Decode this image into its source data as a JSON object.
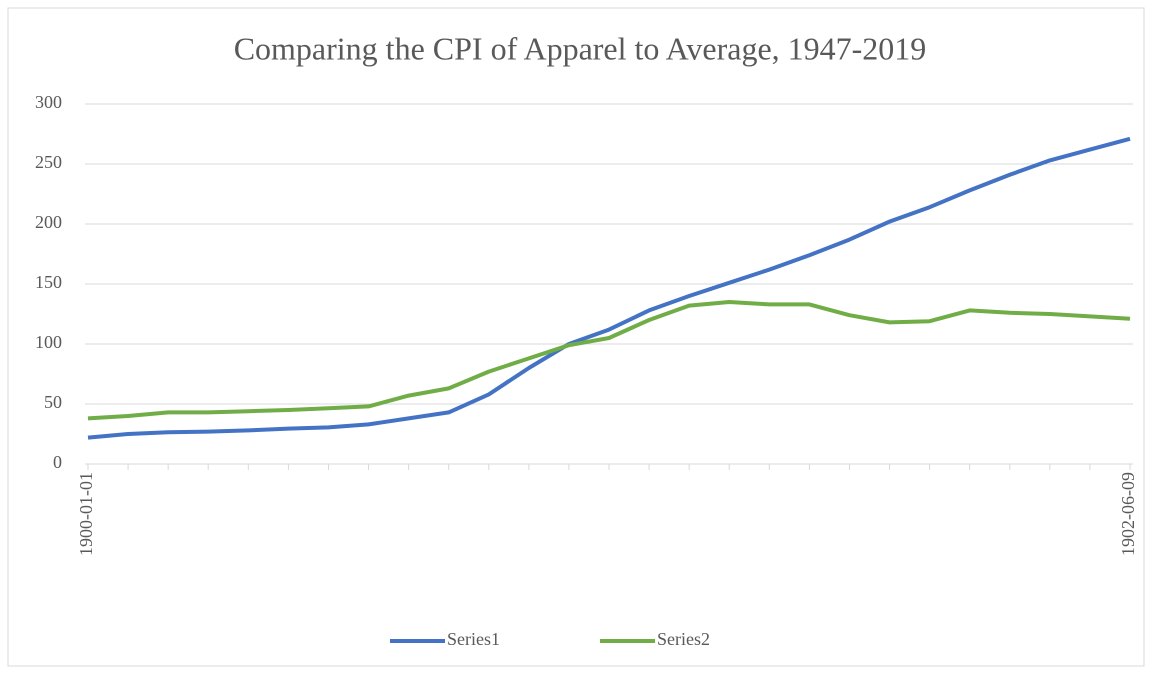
{
  "chart_data": {
    "type": "line",
    "title": "Comparing the CPI of Apparel to Average, 1947-2019",
    "categories": [
      "1900-01-01",
      null,
      null,
      null,
      null,
      null,
      null,
      null,
      null,
      null,
      null,
      null,
      null,
      null,
      null,
      null,
      null,
      null,
      null,
      null,
      null,
      null,
      null,
      null,
      null,
      null,
      "1902-06-09"
    ],
    "series": [
      {
        "name": "Series1",
        "color": "#4472c4",
        "values": [
          22,
          25,
          26.5,
          27,
          28,
          29.5,
          30.5,
          33,
          38,
          43,
          58,
          80,
          100,
          112,
          128,
          140,
          151,
          162,
          174,
          187,
          202,
          214,
          228,
          241,
          253,
          262,
          271
        ]
      },
      {
        "name": "Series2",
        "color": "#70ad47",
        "values": [
          38,
          40,
          43,
          43,
          44,
          45,
          46.5,
          48,
          57,
          63,
          77,
          88,
          99,
          105,
          120,
          132,
          135,
          133,
          133,
          124,
          118,
          119,
          128,
          126,
          125,
          123,
          121
        ]
      }
    ],
    "ylim": [
      0,
      300
    ],
    "yticks": [
      0,
      50,
      100,
      150,
      200,
      250,
      300
    ],
    "grid": true,
    "legend": "bottom"
  }
}
